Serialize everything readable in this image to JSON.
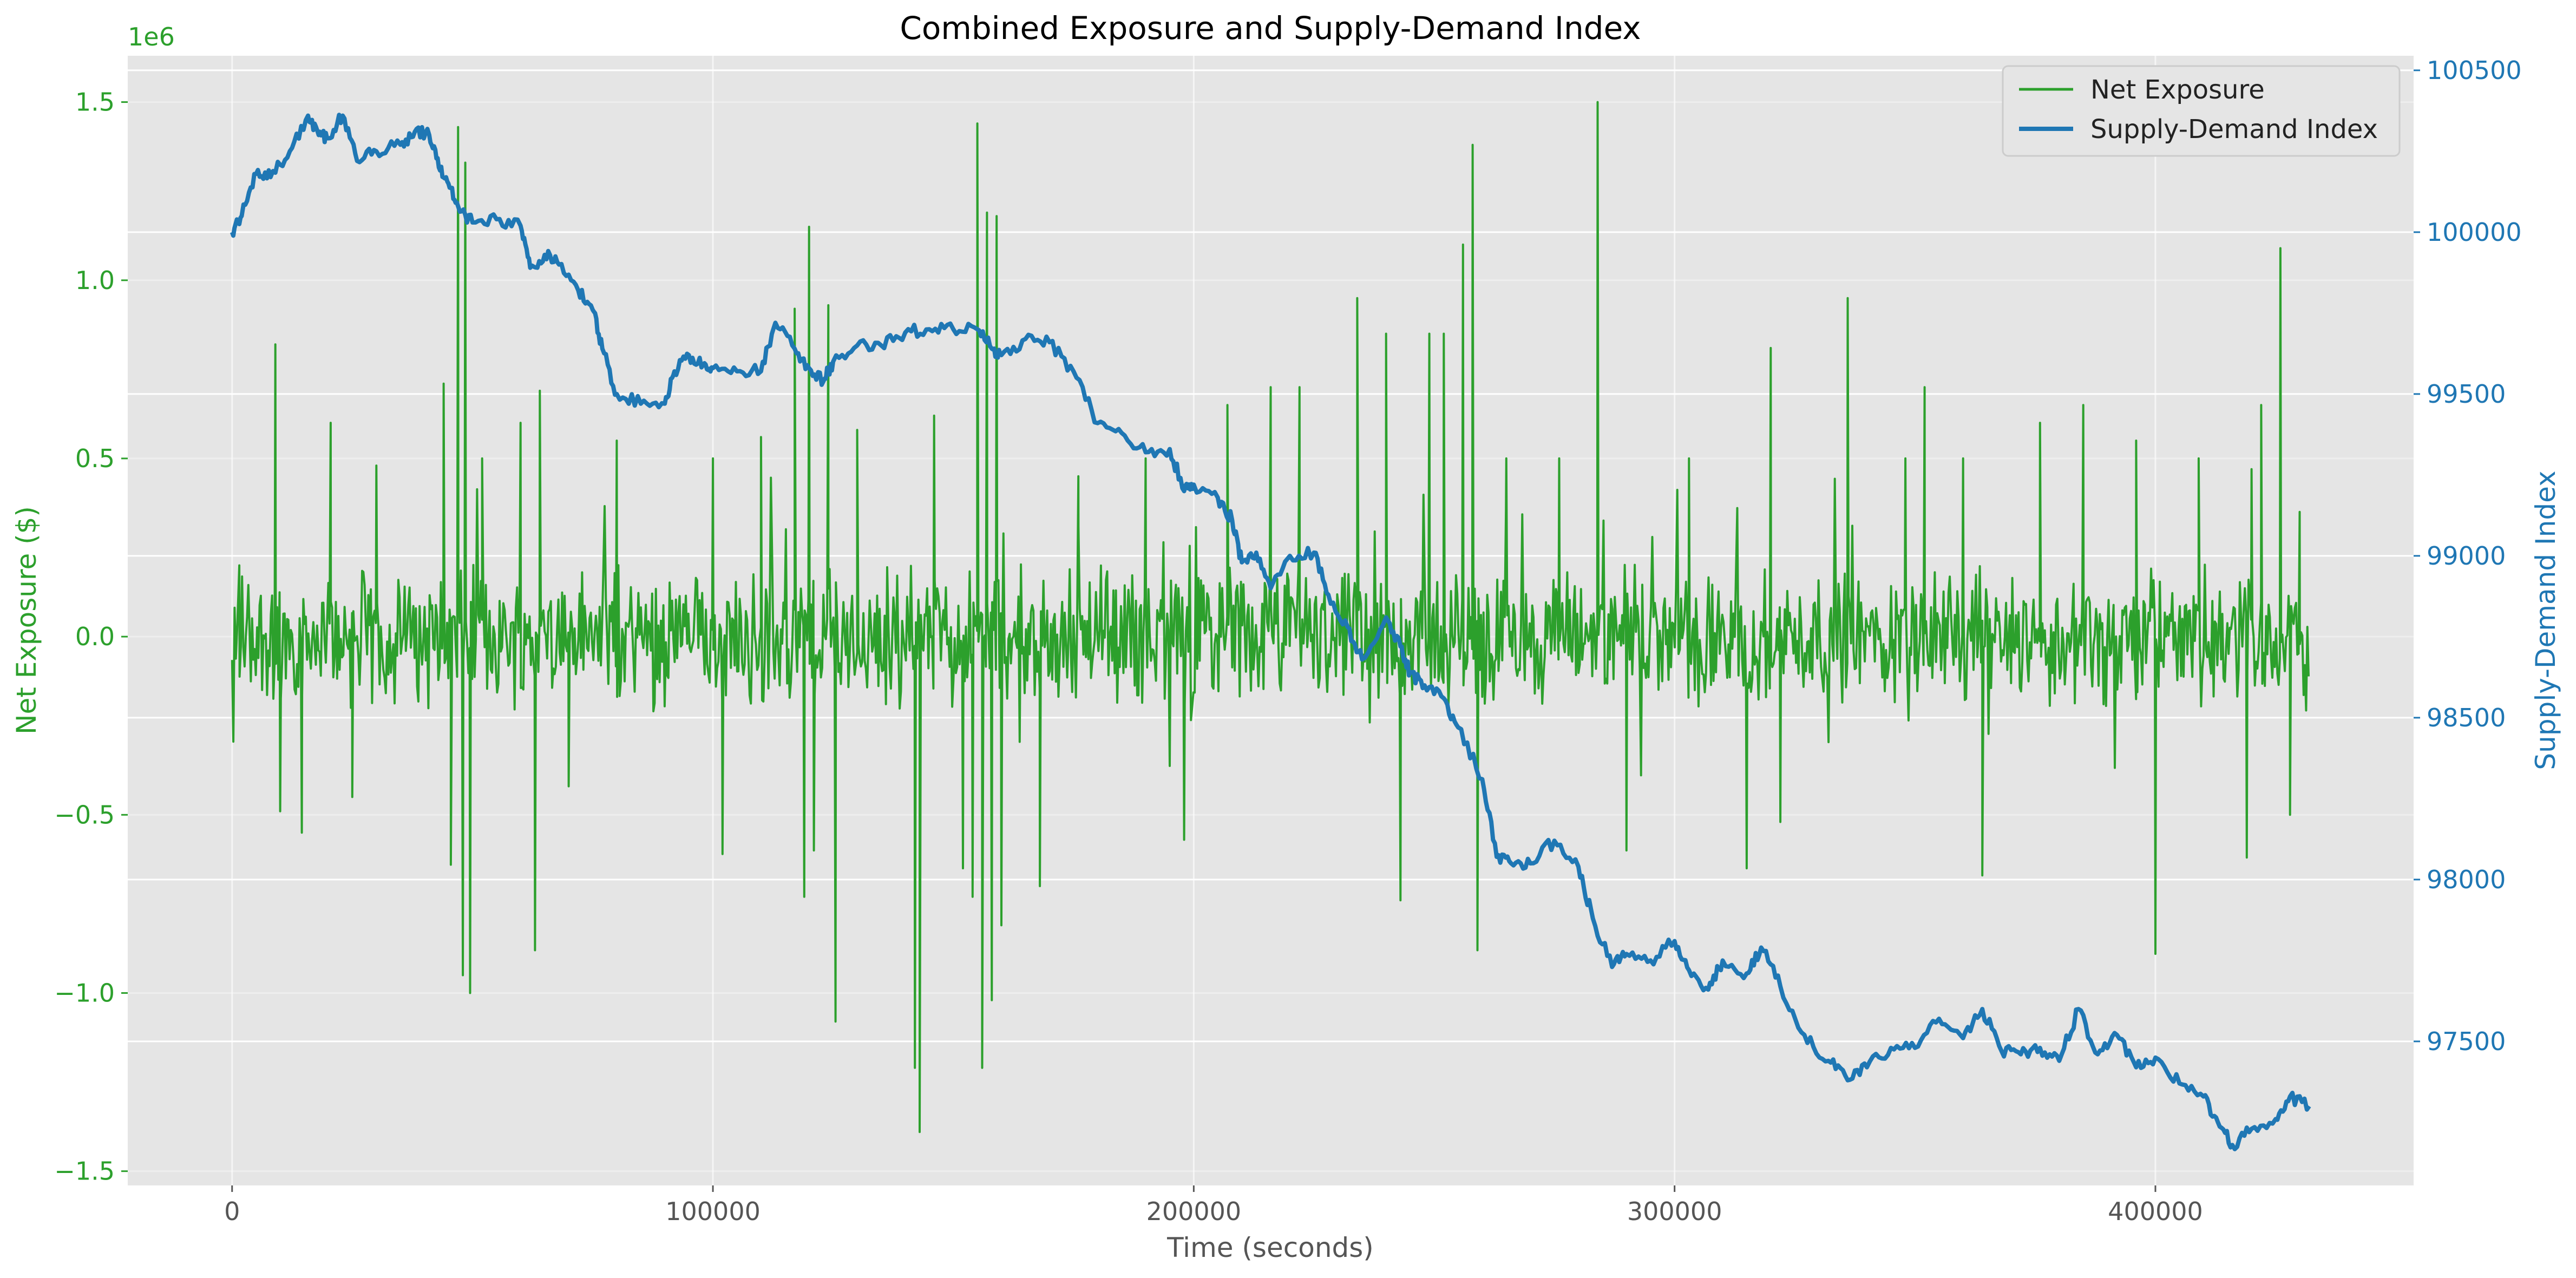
{
  "chart_data": {
    "type": "line",
    "title": "Combined Exposure and Supply-Demand Index",
    "xlabel": "Time (seconds)",
    "ylabel_left": "Net Exposure ($)",
    "ylabel_right": "Supply-Demand Index",
    "left_axis_multiplier": "1e6",
    "xlim": [
      -21700,
      453700
    ],
    "ylim_left": [
      -1.54,
      1.63
    ],
    "ylim_right": [
      97055,
      100545
    ],
    "x_ticks": [
      0,
      100000,
      200000,
      300000,
      400000
    ],
    "x_tick_labels": [
      "0",
      "100000",
      "200000",
      "300000",
      "400000"
    ],
    "y_left_ticks": [
      -1.5,
      -1.0,
      -0.5,
      0.0,
      0.5,
      1.0,
      1.5
    ],
    "y_left_tick_labels": [
      "−1.5",
      "−1.0",
      "−0.5",
      "0.0",
      "0.5",
      "1.0",
      "1.5"
    ],
    "y_right_ticks": [
      97500,
      98000,
      98500,
      99000,
      99500,
      100000,
      100500
    ],
    "y_right_tick_labels": [
      "97500",
      "98000",
      "98500",
      "99000",
      "99500",
      "100000",
      "100500"
    ],
    "grid": true,
    "legend_position": "top-right",
    "colors": {
      "net_exposure": "#2ca02c",
      "supply_demand": "#1f77b4",
      "background": "#e5e5e5",
      "grid": "#ffffff"
    },
    "series": [
      {
        "name": "Net Exposure",
        "axis": "left",
        "color": "#2ca02c",
        "description_values": "high-frequency oscillation around 0 with amplitude mostly within ±0.25e6 and occasional spikes",
        "band": 0.22,
        "spikes": [
          [
            1500,
            0.2
          ],
          [
            9000,
            0.82
          ],
          [
            10000,
            -0.49
          ],
          [
            14500,
            -0.55
          ],
          [
            20500,
            0.6
          ],
          [
            25000,
            -0.45
          ],
          [
            30000,
            0.48
          ],
          [
            44000,
            0.71
          ],
          [
            45500,
            -0.64
          ],
          [
            47000,
            1.43
          ],
          [
            48000,
            -0.95
          ],
          [
            48500,
            1.33
          ],
          [
            49500,
            -1.0
          ],
          [
            52000,
            0.5
          ],
          [
            60000,
            0.6
          ],
          [
            63000,
            -0.88
          ],
          [
            64000,
            0.69
          ],
          [
            70000,
            -0.42
          ],
          [
            80000,
            0.55
          ],
          [
            100000,
            0.5
          ],
          [
            102000,
            -0.61
          ],
          [
            110000,
            0.56
          ],
          [
            117000,
            0.92
          ],
          [
            119000,
            -0.73
          ],
          [
            120000,
            1.15
          ],
          [
            121000,
            -0.6
          ],
          [
            124000,
            0.93
          ],
          [
            125500,
            -1.08
          ],
          [
            130000,
            0.58
          ],
          [
            142000,
            -1.21
          ],
          [
            143000,
            -1.39
          ],
          [
            146000,
            0.62
          ],
          [
            152000,
            -0.65
          ],
          [
            154000,
            -0.73
          ],
          [
            155000,
            1.44
          ],
          [
            156000,
            -1.21
          ],
          [
            157000,
            1.19
          ],
          [
            158000,
            -1.02
          ],
          [
            159000,
            1.18
          ],
          [
            160000,
            -0.81
          ],
          [
            168000,
            -0.7
          ],
          [
            176000,
            0.45
          ],
          [
            190000,
            0.5
          ],
          [
            198000,
            -0.57
          ],
          [
            207000,
            0.65
          ],
          [
            216000,
            0.7
          ],
          [
            222000,
            0.7
          ],
          [
            234000,
            0.95
          ],
          [
            240000,
            0.85
          ],
          [
            243000,
            -0.74
          ],
          [
            249000,
            0.85
          ],
          [
            252000,
            0.85
          ],
          [
            256000,
            1.1
          ],
          [
            258000,
            1.38
          ],
          [
            259000,
            -0.88
          ],
          [
            265000,
            0.5
          ],
          [
            276000,
            0.5
          ],
          [
            284000,
            1.5
          ],
          [
            290000,
            -0.6
          ],
          [
            303000,
            0.5
          ],
          [
            315000,
            -0.65
          ],
          [
            320000,
            0.81
          ],
          [
            322000,
            -0.52
          ],
          [
            336000,
            0.95
          ],
          [
            348000,
            0.5
          ],
          [
            352000,
            0.7
          ],
          [
            360000,
            0.5
          ],
          [
            364000,
            -0.67
          ],
          [
            376000,
            0.6
          ],
          [
            385000,
            0.65
          ],
          [
            396000,
            0.55
          ],
          [
            400000,
            -0.89
          ],
          [
            409000,
            0.5
          ],
          [
            419000,
            -0.62
          ],
          [
            420000,
            0.47
          ],
          [
            422000,
            0.65
          ],
          [
            426000,
            1.09
          ],
          [
            428000,
            -0.5
          ],
          [
            430000,
            0.35
          ]
        ]
      },
      {
        "name": "Supply-Demand Index",
        "axis": "right",
        "color": "#1f77b4",
        "x": [
          0,
          2000,
          5000,
          8000,
          12000,
          15800,
          18000,
          20000,
          23000,
          26000,
          30000,
          35000,
          38000,
          41000,
          43000,
          45000,
          47000,
          50000,
          55000,
          60000,
          62000,
          65000,
          68000,
          72000,
          75000,
          77000,
          80000,
          85000,
          90000,
          92000,
          95000,
          98000,
          100000,
          105000,
          110000,
          113000,
          117000,
          120000,
          123000,
          125000,
          130000,
          135000,
          140000,
          145000,
          150000,
          155000,
          158000,
          160000,
          165000,
          170000,
          175000,
          180000,
          185000,
          190000,
          195000,
          198000,
          200000,
          205000,
          208000,
          210000,
          213000,
          216000,
          220000,
          225000,
          228000,
          232000,
          235000,
          240000,
          243000,
          245000,
          248000,
          252000,
          255000,
          260000,
          263000,
          266000,
          270000,
          275000,
          280000,
          283000,
          287000,
          290000,
          295000,
          300000,
          303000,
          307000,
          310000,
          315000,
          318000,
          322000,
          327000,
          332000,
          336000,
          340000,
          345000,
          350000,
          355000,
          360000,
          364000,
          368000,
          372000,
          376000,
          380000,
          384000,
          388000,
          392000,
          396000,
          400000,
          405000,
          410000,
          413000,
          416000,
          420000,
          425000,
          428000,
          432000
        ],
        "y": [
          100000,
          100050,
          100180,
          100170,
          100250,
          100360,
          100300,
          100290,
          100360,
          100220,
          100250,
          100270,
          100310,
          100300,
          100200,
          100150,
          100080,
          100030,
          100040,
          100020,
          99890,
          99930,
          99900,
          99820,
          99760,
          99640,
          99500,
          99470,
          99470,
          99570,
          99620,
          99590,
          99580,
          99570,
          99570,
          99720,
          99640,
          99580,
          99540,
          99600,
          99650,
          99650,
          99690,
          99700,
          99700,
          99700,
          99640,
          99620,
          99670,
          99660,
          99570,
          99410,
          99380,
          99320,
          99330,
          99200,
          99220,
          99180,
          99110,
          98980,
          99010,
          98900,
          99000,
          99010,
          98880,
          98780,
          98680,
          98810,
          98720,
          98640,
          98600,
          98560,
          98470,
          98310,
          98070,
          98050,
          98050,
          98120,
          98040,
          97880,
          97730,
          97770,
          97750,
          97810,
          97720,
          97660,
          97750,
          97710,
          97790,
          97670,
          97520,
          97440,
          97380,
          97420,
          97480,
          97480,
          97570,
          97510,
          97600,
          97470,
          97460,
          97480,
          97440,
          97600,
          97460,
          97520,
          97420,
          97450,
          97370,
          97330,
          97250,
          97180,
          97230,
          97260,
          97330,
          97300
        ]
      }
    ]
  }
}
